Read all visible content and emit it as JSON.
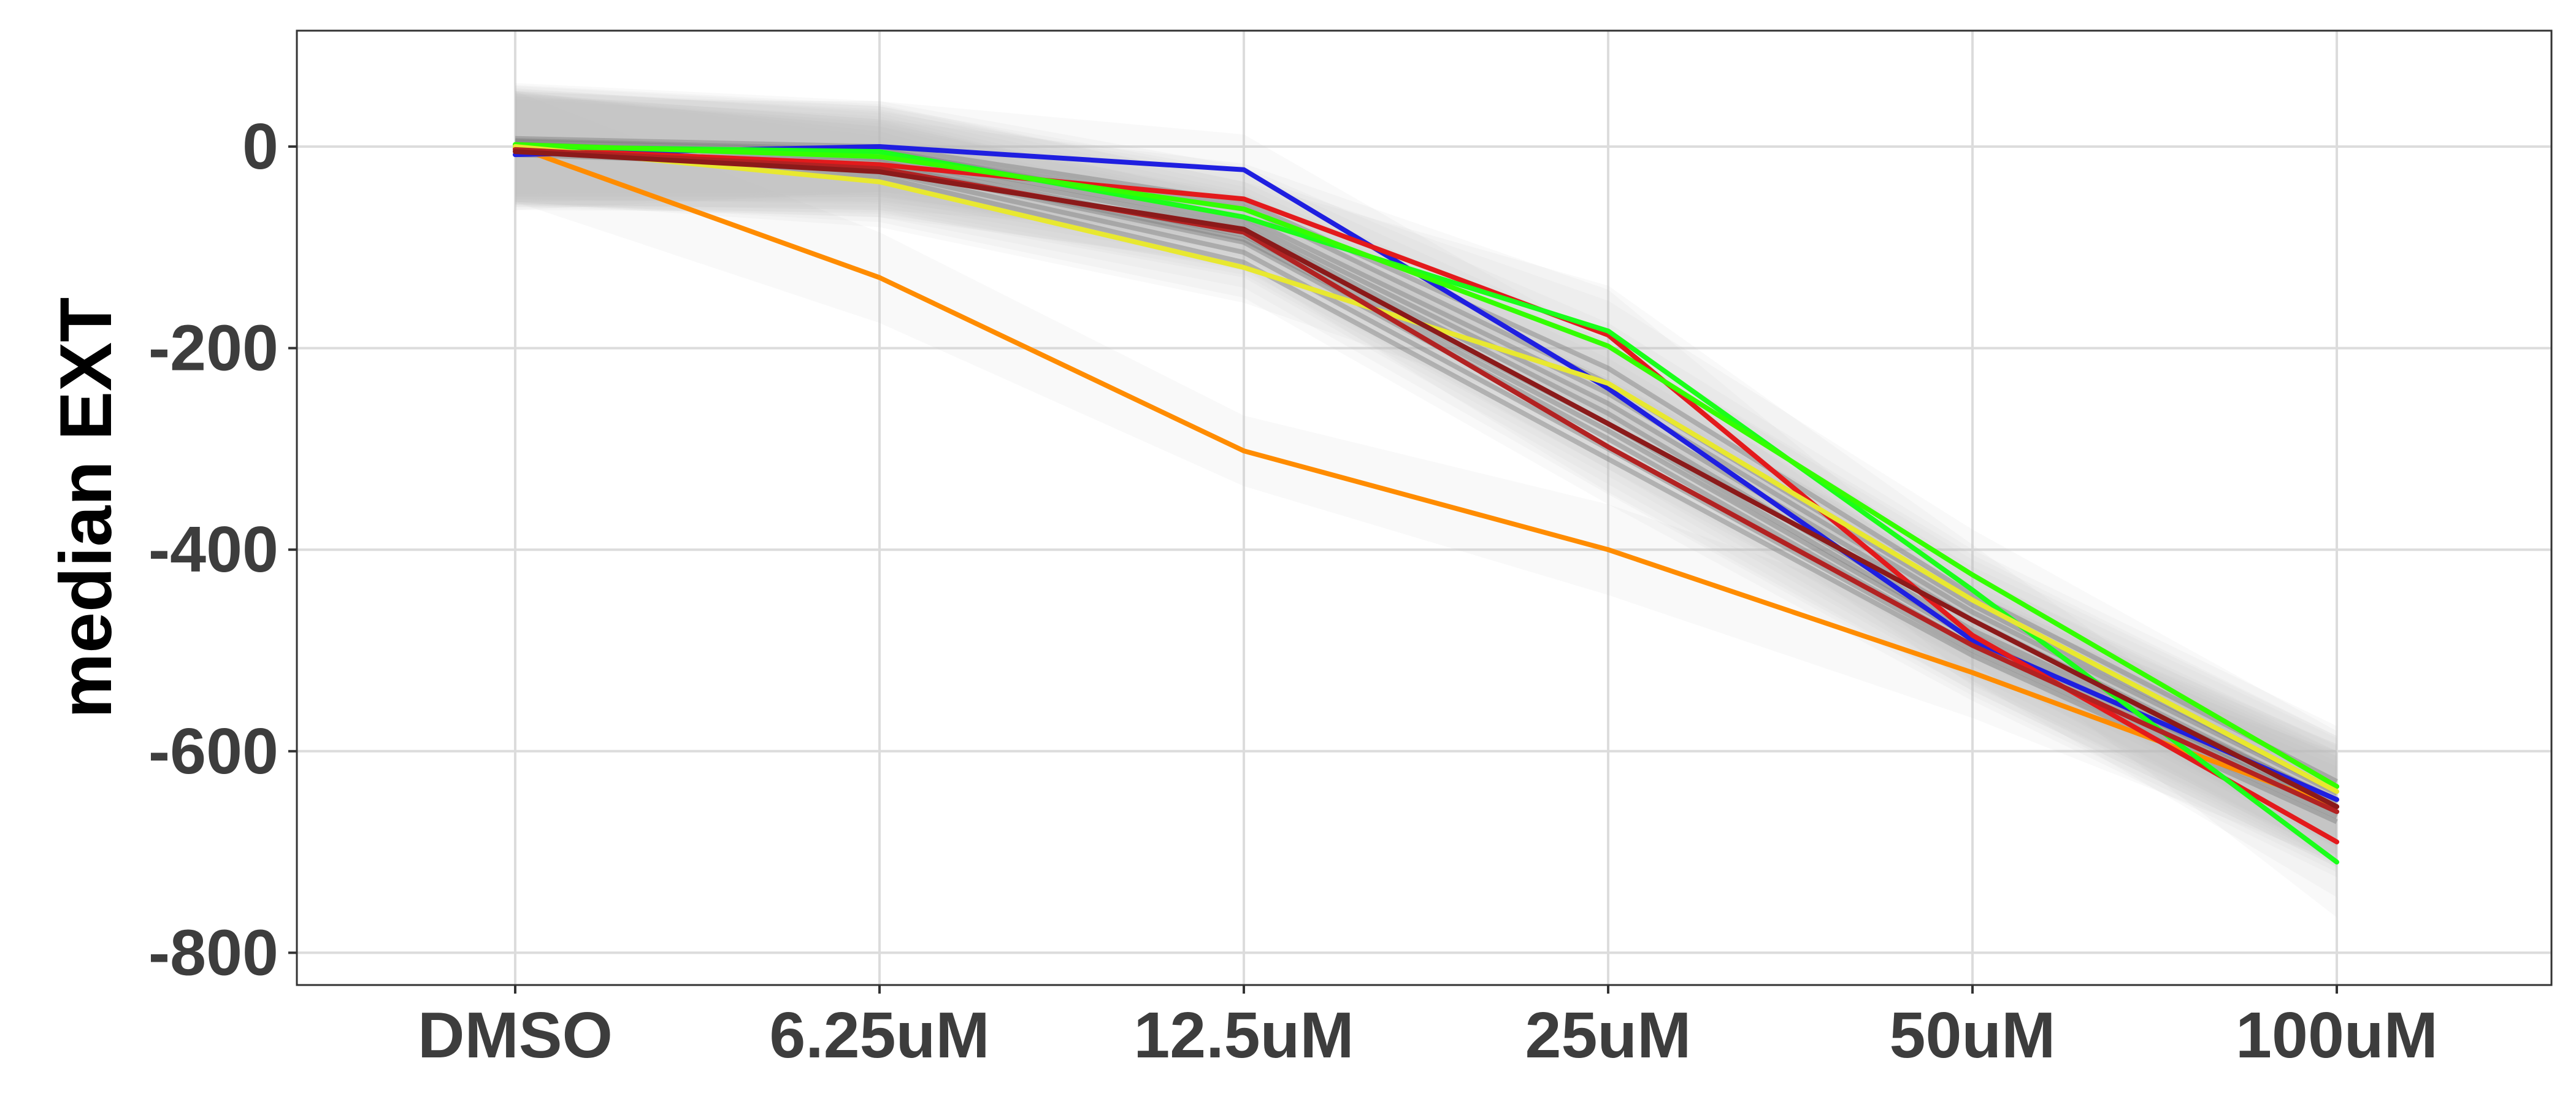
{
  "chart_data": {
    "type": "line",
    "title": "",
    "xlabel": "",
    "ylabel": "median EXT",
    "categories": [
      "DMSO",
      "6.25uM",
      "12.5uM",
      "25uM",
      "50uM",
      "100uM"
    ],
    "y_ticks": [
      "0",
      "-200",
      "-400",
      "-600",
      "-800"
    ],
    "y_tick_values": [
      0,
      -200,
      -400,
      -600,
      -800
    ],
    "ylim": [
      -832,
      115
    ],
    "grid": true,
    "legend": "none",
    "background_series": {
      "color": "#7f7f7f",
      "ribbon_color": "#e6e6e6",
      "series": [
        {
          "values": [
            0,
            -8,
            -75,
            -255,
            -470,
            -650
          ]
        },
        {
          "values": [
            5,
            -5,
            -60,
            -235,
            -455,
            -640
          ]
        },
        {
          "values": [
            -8,
            -20,
            -95,
            -290,
            -495,
            -660
          ]
        },
        {
          "values": [
            3,
            -12,
            -80,
            -265,
            -480,
            -648
          ]
        },
        {
          "values": [
            -3,
            -25,
            -105,
            -300,
            -500,
            -665
          ]
        },
        {
          "values": [
            8,
            0,
            -55,
            -220,
            -445,
            -630
          ]
        },
        {
          "values": [
            -5,
            -15,
            -88,
            -275,
            -485,
            -655
          ]
        },
        {
          "values": [
            0,
            -30,
            -115,
            -310,
            -505,
            -670
          ]
        },
        {
          "values": [
            6,
            -3,
            -70,
            -245,
            -462,
            -642
          ]
        },
        {
          "values": [
            -2,
            -18,
            -92,
            -282,
            -488,
            -658
          ]
        }
      ]
    },
    "series": [
      {
        "color": "#ff8c00",
        "values": [
          0,
          -130,
          -302,
          -400,
          -522,
          -655
        ]
      },
      {
        "color": "#1f1fe0",
        "values": [
          -8,
          0,
          -23,
          -240,
          -490,
          -648
        ]
      },
      {
        "color": "#e31a1c",
        "values": [
          -2,
          -18,
          -52,
          -187,
          -485,
          -690
        ]
      },
      {
        "color": "#1aff1a",
        "values": [
          0,
          -5,
          -70,
          -183,
          -440,
          -710
        ]
      },
      {
        "color": "#33ff00",
        "values": [
          2,
          -10,
          -62,
          -198,
          -425,
          -635
        ]
      },
      {
        "color": "#e8e830",
        "values": [
          0,
          -35,
          -120,
          -235,
          -450,
          -640
        ]
      },
      {
        "color": "#b22222",
        "values": [
          -3,
          -22,
          -85,
          -298,
          -495,
          -660
        ]
      },
      {
        "color": "#8b1a1a",
        "values": [
          -5,
          -25,
          -82,
          -275,
          -470,
          -655
        ]
      }
    ]
  }
}
